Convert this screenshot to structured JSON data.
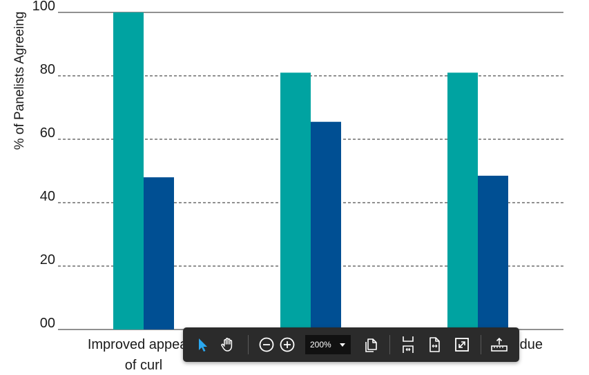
{
  "chart_data": {
    "type": "bar",
    "ylabel": "% of Panelists Agreeing",
    "ylim": [
      0,
      100
    ],
    "yticks": [
      "00",
      "20",
      "40",
      "60",
      "80",
      "100"
    ],
    "ytick_values": [
      0,
      20,
      40,
      60,
      80,
      100
    ],
    "categories": [
      [
        "Improved appeara",
        "of curl"
      ],
      [
        "",
        ""
      ],
      [
        "due",
        ""
      ]
    ],
    "series": [
      {
        "color": "#00a3a1",
        "values": [
          100,
          81,
          81
        ]
      },
      {
        "color": "#004f93",
        "values": [
          48,
          65.5,
          48.5
        ]
      }
    ],
    "grid": "dashed horizontal",
    "legend": "none"
  },
  "toolbar": {
    "zoom_value": "200%",
    "buttons": [
      {
        "icon": "select-arrow-icon",
        "active": true
      },
      {
        "icon": "hand-pan-icon"
      },
      {
        "icon": "zoom-out-icon"
      },
      {
        "icon": "zoom-in-icon"
      },
      {
        "icon": "copy-pages-icon"
      },
      {
        "icon": "fit-height-icon"
      },
      {
        "icon": "fit-page-icon"
      },
      {
        "icon": "fullscreen-icon"
      },
      {
        "icon": "measure-ruler-icon"
      }
    ],
    "active_color": "#2aa8f0"
  }
}
